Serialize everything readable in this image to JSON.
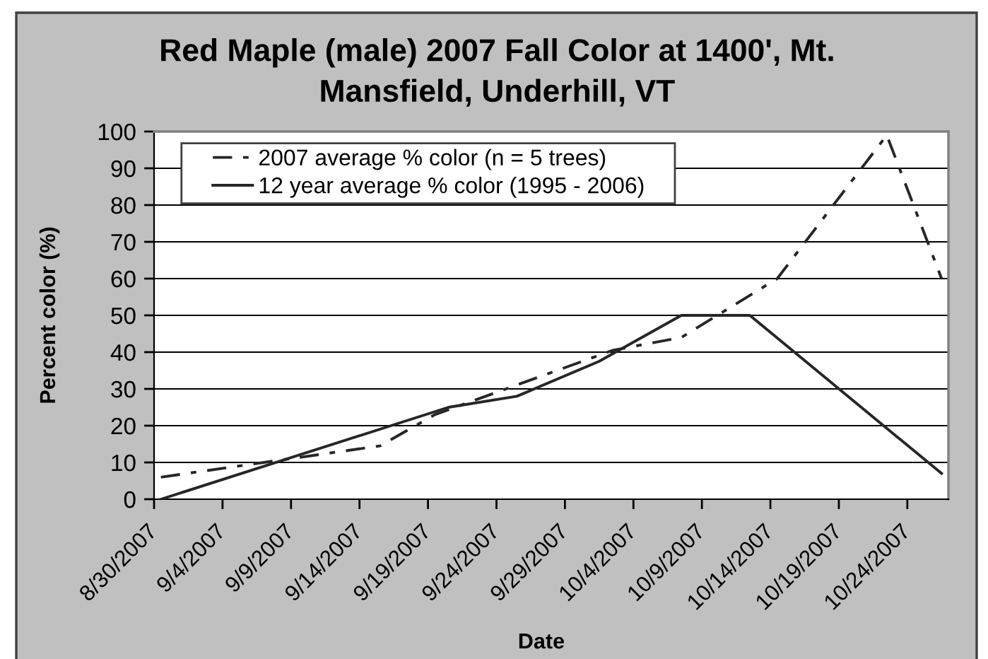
{
  "chart_data": {
    "type": "line",
    "title": "Red Maple (male) 2007 Fall Color at 1400', Mt.\nMansfield, Underhill, VT",
    "xlabel": "Date",
    "ylabel": "Percent color (%)",
    "series": [
      {
        "name": "2007 average % color (n = 5 trees)",
        "color": "#262626",
        "line_style": "dashed",
        "x": [
          "2007-08-30T12:00",
          "2007-09-15T12:00",
          "2007-09-19T12:00",
          "2007-10-02T12:00",
          "2007-10-07T12:00",
          "2007-10-14T12:00",
          "2007-10-22T12:00",
          "2007-10-26T12:00"
        ],
        "values": [
          6,
          14.5,
          23,
          40.5,
          44,
          60,
          99,
          60
        ]
      },
      {
        "name": "12 year average % color (1995 - 2006)",
        "color": "#262626",
        "line_style": "solid",
        "x": [
          "2007-08-30T12:00",
          "2007-09-20T12:00",
          "2007-09-25T12:00",
          "2007-10-01T12:00",
          "2007-10-07T12:00",
          "2007-10-12T12:00",
          "2007-10-26T12:00"
        ],
        "values": [
          0,
          25,
          28,
          37.5,
          50,
          50,
          7
        ]
      }
    ],
    "xlim": [
      "2007-08-30",
      "2007-10-27"
    ],
    "xticks": [
      {
        "value": "2007-08-30",
        "label": "8/30/2007"
      },
      {
        "value": "2007-09-04",
        "label": "9/4/2007"
      },
      {
        "value": "2007-09-09",
        "label": "9/9/2007"
      },
      {
        "value": "2007-09-14",
        "label": "9/14/2007"
      },
      {
        "value": "2007-09-19",
        "label": "9/19/2007"
      },
      {
        "value": "2007-09-24",
        "label": "9/24/2007"
      },
      {
        "value": "2007-09-29",
        "label": "9/29/2007"
      },
      {
        "value": "2007-10-04",
        "label": "10/4/2007"
      },
      {
        "value": "2007-10-09",
        "label": "10/9/2007"
      },
      {
        "value": "2007-10-14",
        "label": "10/14/2007"
      },
      {
        "value": "2007-10-19",
        "label": "10/19/2007"
      },
      {
        "value": "2007-10-24",
        "label": "10/24/2007"
      }
    ],
    "ylim": [
      0,
      100
    ],
    "yticks": [
      0,
      10,
      20,
      30,
      40,
      50,
      60,
      70,
      80,
      90,
      100
    ],
    "grid": "y",
    "legend": "top left",
    "marker": "none"
  }
}
